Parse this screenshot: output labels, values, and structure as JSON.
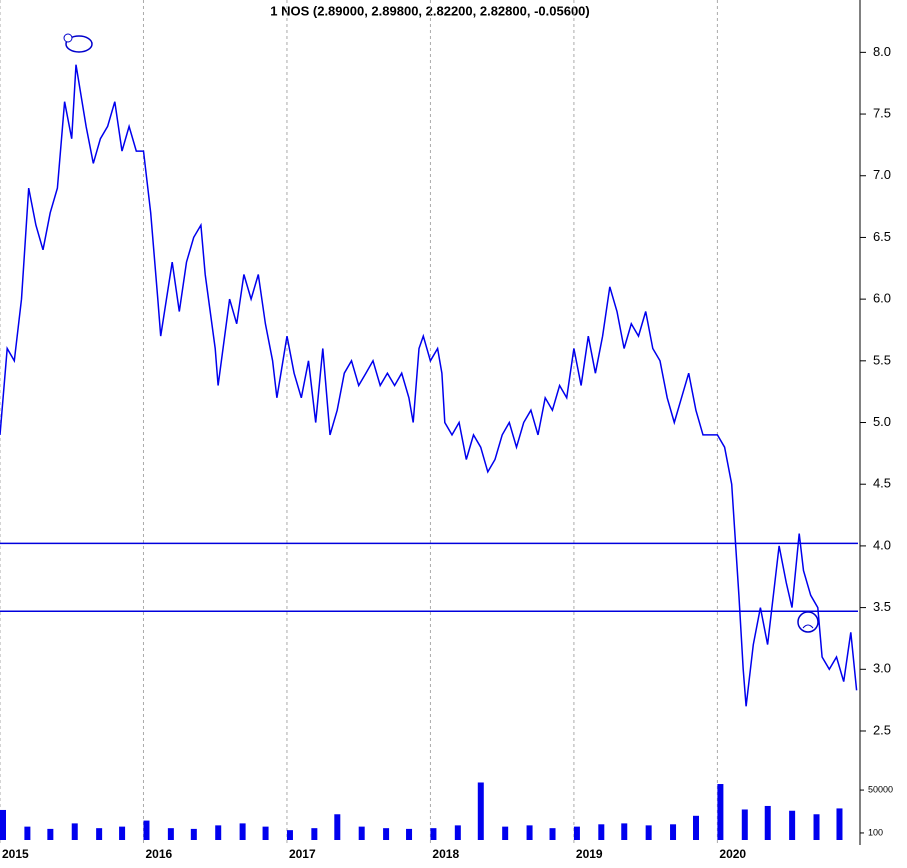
{
  "chart_data": [
    {
      "type": "line",
      "title": "1 NOS (2.89000, 2.89800, 2.82200, 2.82800, -0.05600)",
      "x": [
        2015.0,
        2015.05,
        2015.1,
        2015.15,
        2015.2,
        2015.25,
        2015.3,
        2015.35,
        2015.4,
        2015.45,
        2015.5,
        2015.53,
        2015.6,
        2015.65,
        2015.7,
        2015.75,
        2015.8,
        2015.85,
        2015.9,
        2015.95,
        2016.0,
        2016.05,
        2016.1,
        2016.12,
        2016.2,
        2016.25,
        2016.3,
        2016.35,
        2016.4,
        2016.43,
        2016.5,
        2016.52,
        2016.6,
        2016.65,
        2016.7,
        2016.75,
        2016.8,
        2016.85,
        2016.9,
        2016.93,
        2017.0,
        2017.05,
        2017.1,
        2017.15,
        2017.2,
        2017.25,
        2017.3,
        2017.35,
        2017.4,
        2017.45,
        2017.5,
        2017.55,
        2017.6,
        2017.65,
        2017.7,
        2017.75,
        2017.8,
        2017.85,
        2017.88,
        2017.92,
        2017.95,
        2018.0,
        2018.05,
        2018.08,
        2018.1,
        2018.15,
        2018.2,
        2018.25,
        2018.3,
        2018.35,
        2018.4,
        2018.45,
        2018.5,
        2018.55,
        2018.6,
        2018.65,
        2018.7,
        2018.75,
        2018.8,
        2018.85,
        2018.9,
        2018.95,
        2019.0,
        2019.05,
        2019.1,
        2019.15,
        2019.2,
        2019.25,
        2019.3,
        2019.35,
        2019.4,
        2019.45,
        2019.5,
        2019.55,
        2019.6,
        2019.65,
        2019.7,
        2019.75,
        2019.8,
        2019.85,
        2019.9,
        2019.95,
        2020.0,
        2020.05,
        2020.1,
        2020.15,
        2020.18,
        2020.2,
        2020.25,
        2020.3,
        2020.35,
        2020.4,
        2020.43,
        2020.48,
        2020.52,
        2020.57,
        2020.6,
        2020.65,
        2020.7,
        2020.73,
        2020.78,
        2020.83,
        2020.88,
        2020.93,
        2020.97
      ],
      "series": [
        {
          "color": "#0000ee",
          "values": [
            4.9,
            5.6,
            5.5,
            6.0,
            6.9,
            6.6,
            6.4,
            6.7,
            6.9,
            7.6,
            7.3,
            7.9,
            7.4,
            7.1,
            7.3,
            7.4,
            7.6,
            7.2,
            7.4,
            7.2,
            7.2,
            6.7,
            6.0,
            5.7,
            6.3,
            5.9,
            6.3,
            6.5,
            6.6,
            6.2,
            5.6,
            5.3,
            6.0,
            5.8,
            6.2,
            6.0,
            6.2,
            5.8,
            5.5,
            5.2,
            5.7,
            5.4,
            5.2,
            5.5,
            5.0,
            5.6,
            4.9,
            5.1,
            5.4,
            5.5,
            5.3,
            5.4,
            5.5,
            5.3,
            5.4,
            5.3,
            5.4,
            5.2,
            5.0,
            5.6,
            5.7,
            5.5,
            5.6,
            5.4,
            5.0,
            4.9,
            5.0,
            4.7,
            4.9,
            4.8,
            4.6,
            4.7,
            4.9,
            5.0,
            4.8,
            5.0,
            5.1,
            4.9,
            5.2,
            5.1,
            5.3,
            5.2,
            5.6,
            5.3,
            5.7,
            5.4,
            5.7,
            6.1,
            5.9,
            5.6,
            5.8,
            5.7,
            5.9,
            5.6,
            5.5,
            5.2,
            5.0,
            5.2,
            5.4,
            5.1,
            4.9,
            4.9,
            4.9,
            4.8,
            4.5,
            3.6,
            3.0,
            2.7,
            3.2,
            3.5,
            3.2,
            3.7,
            4.0,
            3.7,
            3.5,
            4.1,
            3.8,
            3.6,
            3.5,
            3.1,
            3.0,
            3.1,
            2.9,
            3.3,
            2.83
          ]
        }
      ],
      "hlines": [
        4.02,
        3.47
      ],
      "hline_color": "#0000dd",
      "xlim": [
        2015.0,
        2020.98
      ],
      "xticks": [
        2015,
        2016,
        2017,
        2018,
        2019,
        2020
      ],
      "ylim": [
        2.2,
        8.4
      ],
      "yticks": [
        {
          "value": 2.5,
          "label": "2.5"
        },
        {
          "value": 3,
          "label": "3.0"
        },
        {
          "value": 3.5,
          "label": "3.5"
        },
        {
          "value": 4,
          "label": "4.0"
        },
        {
          "value": 4.5,
          "label": "4.5"
        },
        {
          "value": 5,
          "label": "5.0"
        },
        {
          "value": 5.5,
          "label": "5.5"
        },
        {
          "value": 6,
          "label": "6.0"
        },
        {
          "value": 6.5,
          "label": "6.5"
        },
        {
          "value": 7,
          "label": "7.0"
        },
        {
          "value": 7.5,
          "label": "7.5"
        },
        {
          "value": 8,
          "label": "8.0"
        }
      ],
      "grid": true
    },
    {
      "type": "bar",
      "color": "#0000ee",
      "log": true,
      "x": [
        2015.0,
        2015.17,
        2015.33,
        2015.5,
        2015.67,
        2015.83,
        2016.0,
        2016.17,
        2016.33,
        2016.5,
        2016.67,
        2016.83,
        2017.0,
        2017.17,
        2017.33,
        2017.5,
        2017.67,
        2017.83,
        2018.0,
        2018.17,
        2018.33,
        2018.5,
        2018.67,
        2018.83,
        2019.0,
        2019.17,
        2019.33,
        2019.5,
        2019.67,
        2019.83,
        2020.0,
        2020.17,
        2020.33,
        2020.5,
        2020.67,
        2020.83
      ],
      "values": [
        2800,
        250,
        180,
        400,
        200,
        250,
        600,
        200,
        180,
        300,
        400,
        250,
        150,
        200,
        1500,
        250,
        200,
        180,
        200,
        300,
        150000,
        250,
        300,
        200,
        250,
        350,
        400,
        300,
        350,
        1200,
        120000,
        3000,
        5000,
        2500,
        1500,
        3500
      ],
      "xlim": [
        2015.0,
        2020.98
      ],
      "ylim": [
        36,
        215000
      ],
      "yticks": [
        100,
        50000
      ]
    }
  ]
}
